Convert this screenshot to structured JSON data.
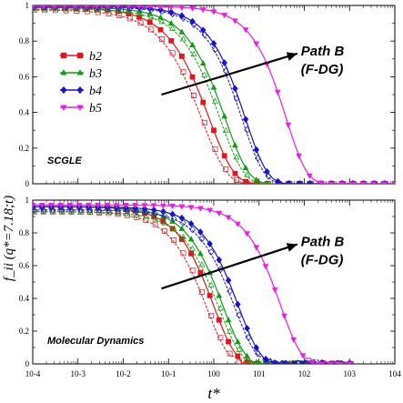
{
  "chart_data": {
    "type": "line",
    "xscale": "log",
    "xlim": [
      0.0001,
      10000
    ],
    "ylim": [
      0,
      1
    ],
    "xlabel": "t*",
    "ylabel": "f_ii (q*=7.18;t)",
    "x_tick_labels": [
      "10-4",
      "10-3",
      "10-2",
      "10-1",
      "100",
      "101",
      "102",
      "103",
      "104"
    ],
    "y_ticks": [
      0,
      0.2,
      0.4,
      0.6,
      0.8,
      1
    ],
    "y_tick_labels": [
      "0",
      "0.2",
      "0.4",
      "0.6",
      "0.8",
      "1"
    ],
    "legend": {
      "placement": "upper-left",
      "entries": [
        {
          "label": "b2",
          "color": "#e8141c",
          "marker": "square"
        },
        {
          "label": "b3",
          "color": "#0f9e0f",
          "marker": "triangle-up"
        },
        {
          "label": "b4",
          "color": "#1414d2",
          "marker": "diamond"
        },
        {
          "label": "b5",
          "color": "#ee1aee",
          "marker": "triangle-down"
        }
      ]
    },
    "panels": [
      {
        "annotation": "SCGLE",
        "arrow_text_line1": "Path B",
        "arrow_text_line2": "(F-DG)",
        "arrow_from": [
          0.07,
          0.5
        ],
        "arrow_to": [
          70,
          0.73
        ],
        "series": [
          {
            "name": "b2",
            "color": "#e8141c",
            "marker": "square",
            "kind": "pair",
            "tau": 0.8,
            "beta": 0.8,
            "plateau_solid": 0.99,
            "plateau_open": 0.975,
            "tau_open": 0.55,
            "xmax": 10000
          },
          {
            "name": "b3",
            "color": "#0f9e0f",
            "marker": "triangle-up",
            "kind": "pair",
            "tau": 1.8,
            "beta": 0.85,
            "plateau_solid": 0.99,
            "plateau_open": 0.98,
            "tau_open": 1.4,
            "xmax": 10000
          },
          {
            "name": "b4",
            "color": "#1414d2",
            "marker": "diamond",
            "kind": "pair",
            "tau": 5.0,
            "beta": 0.9,
            "plateau_solid": 0.995,
            "plateau_open": 0.99,
            "tau_open": 4.2,
            "xmax": 10000
          },
          {
            "name": "b5",
            "color": "#ee1aee",
            "marker": "triangle-down",
            "kind": "single",
            "tau": 40,
            "beta": 0.95,
            "plateau_solid": 0.995,
            "xmax": 10000
          }
        ]
      },
      {
        "annotation": "Molecular Dynamics",
        "arrow_text_line1": "Path B",
        "arrow_text_line2": "(F-DG)",
        "arrow_from": [
          0.07,
          0.46
        ],
        "arrow_to": [
          70,
          0.73
        ],
        "series": [
          {
            "name": "b2",
            "color": "#e8141c",
            "marker": "square",
            "kind": "pair",
            "tau": 1.0,
            "beta": 0.9,
            "plateau_solid": 0.96,
            "plateau_open": 0.93,
            "tau_open": 0.7,
            "xmax": 1000
          },
          {
            "name": "b3",
            "color": "#0f9e0f",
            "marker": "triangle-up",
            "kind": "pair",
            "tau": 1.6,
            "beta": 0.9,
            "plateau_solid": 0.96,
            "plateau_open": 0.93,
            "tau_open": 1.3,
            "xmax": 1000
          },
          {
            "name": "b4",
            "color": "#1414d2",
            "marker": "diamond",
            "kind": "pair",
            "tau": 3.5,
            "beta": 0.9,
            "plateau_solid": 0.96,
            "plateau_open": 0.94,
            "tau_open": 2.9,
            "xmax": 1000
          },
          {
            "name": "b5",
            "color": "#ee1aee",
            "marker": "triangle-down",
            "kind": "single",
            "tau": 30,
            "beta": 0.95,
            "plateau_solid": 0.97,
            "xmax": 1000
          }
        ]
      }
    ]
  }
}
